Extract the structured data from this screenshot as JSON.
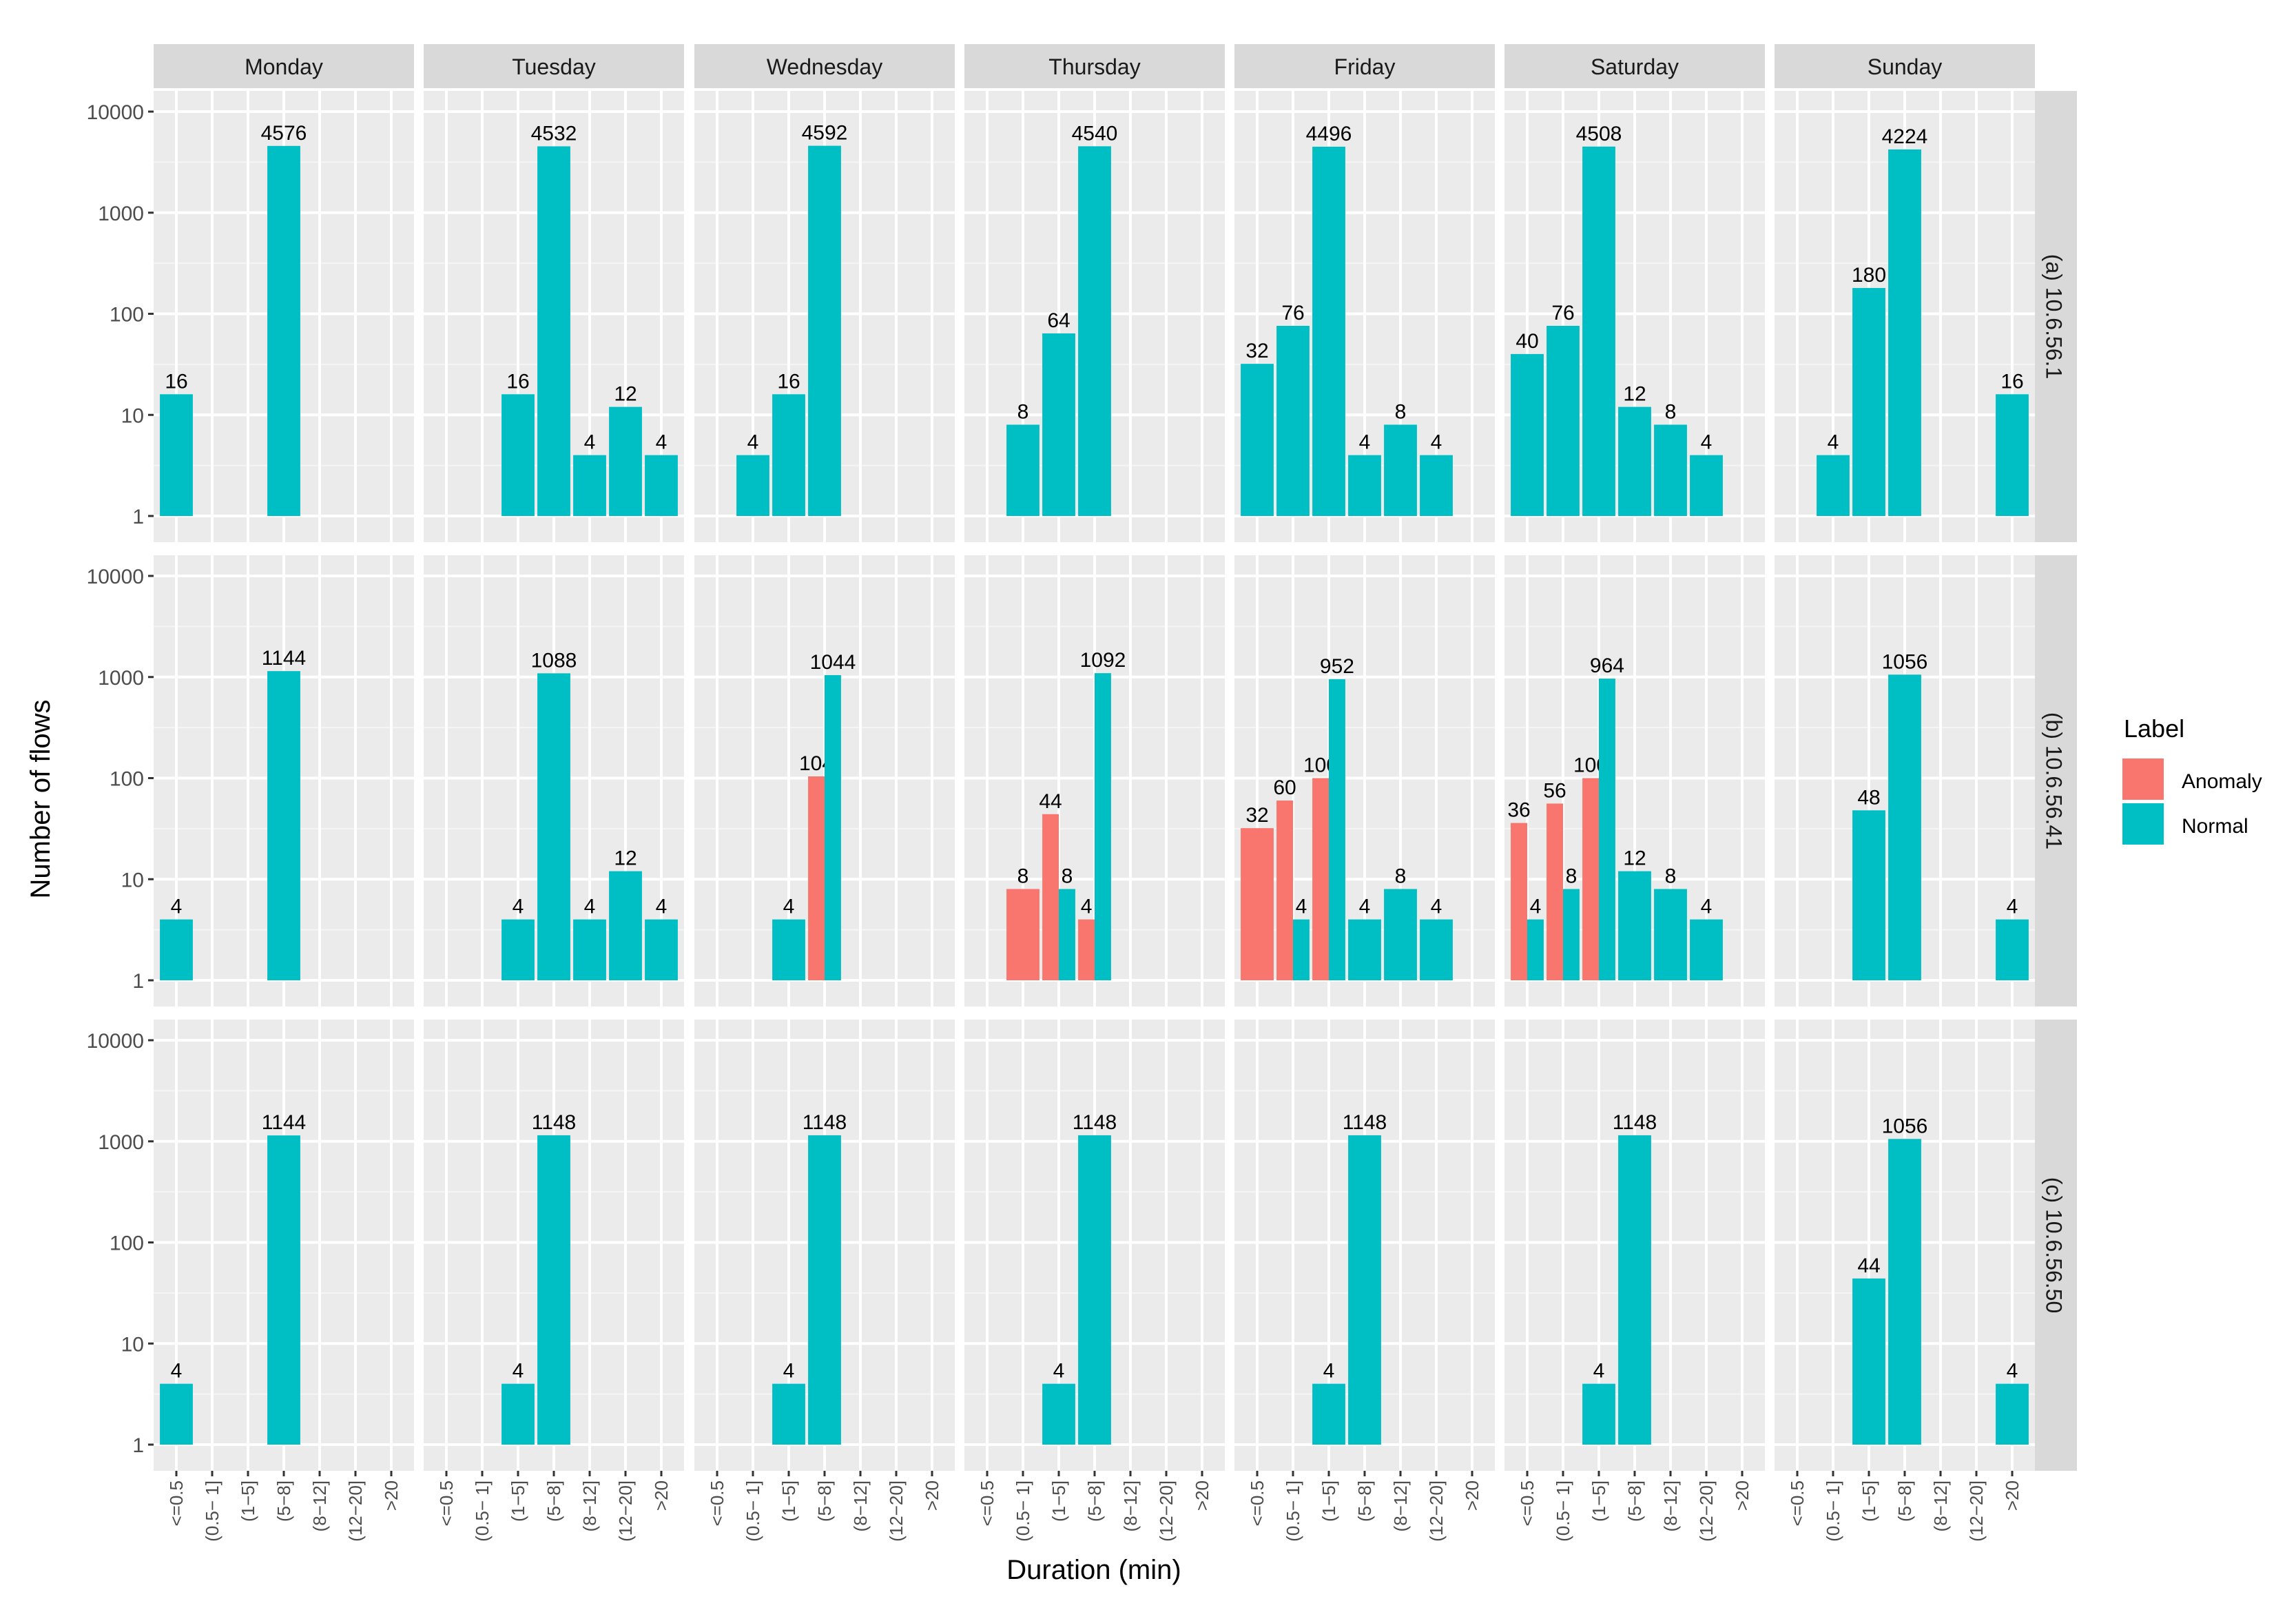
{
  "chart_data": {
    "type": "bar",
    "scale": "log10",
    "xlabel": "Duration (min)",
    "ylabel": "Number of flows",
    "ylim": [
      1,
      10000
    ],
    "y_ticks": [
      1,
      10,
      100,
      1000,
      10000
    ],
    "y_tick_labels": [
      "1",
      "10",
      "100",
      "1000",
      "10000"
    ],
    "categories": [
      "<=0.5",
      "(0.5− 1]",
      "(1−5]",
      "(5−8]",
      "(8−12]",
      "(12−20]",
      ">20"
    ],
    "columns": [
      "Monday",
      "Tuesday",
      "Wednesday",
      "Thursday",
      "Friday",
      "Saturday",
      "Sunday"
    ],
    "rows": [
      "(a) 10.6.56.1",
      "(b) 10.6.56.41",
      "(c) 10.6.56.50"
    ],
    "legend": {
      "title": "Label",
      "position": "right",
      "items": [
        {
          "name": "Anomaly",
          "color": "#F8766D"
        },
        {
          "name": "Normal",
          "color": "#00BFC4"
        }
      ]
    },
    "panels": [
      [
        {
          "bars": [
            [
              0,
              "Normal",
              16
            ],
            [
              3,
              "Normal",
              4576
            ]
          ]
        },
        {
          "bars": [
            [
              2,
              "Normal",
              16
            ],
            [
              3,
              "Normal",
              4532
            ],
            [
              4,
              "Normal",
              4
            ],
            [
              5,
              "Normal",
              12
            ],
            [
              6,
              "Normal",
              4
            ]
          ]
        },
        {
          "bars": [
            [
              1,
              "Normal",
              4
            ],
            [
              2,
              "Normal",
              16
            ],
            [
              3,
              "Normal",
              4592
            ]
          ]
        },
        {
          "bars": [
            [
              1,
              "Normal",
              8
            ],
            [
              2,
              "Normal",
              64
            ],
            [
              3,
              "Normal",
              4540
            ]
          ]
        },
        {
          "bars": [
            [
              0,
              "Normal",
              32
            ],
            [
              1,
              "Normal",
              76
            ],
            [
              2,
              "Normal",
              4496
            ],
            [
              3,
              "Normal",
              4
            ],
            [
              4,
              "Normal",
              8
            ],
            [
              5,
              "Normal",
              4
            ]
          ],
          "note": "bars span <=0.5..(12-20]"
        },
        {
          "bars": [
            [
              0,
              "Normal",
              40
            ],
            [
              1,
              "Normal",
              76
            ],
            [
              2,
              "Normal",
              4508
            ],
            [
              3,
              "Normal",
              12
            ],
            [
              4,
              "Normal",
              8
            ],
            [
              5,
              "Normal",
              4
            ]
          ]
        },
        {
          "bars": [
            [
              1,
              "Normal",
              4
            ],
            [
              2,
              "Normal",
              180
            ],
            [
              3,
              "Normal",
              4224
            ],
            [
              6,
              "Normal",
              16
            ]
          ]
        }
      ],
      [
        {
          "bars": [
            [
              0,
              "Normal",
              4
            ],
            [
              3,
              "Normal",
              1144
            ]
          ]
        },
        {
          "bars": [
            [
              2,
              "Normal",
              4
            ],
            [
              3,
              "Normal",
              1088
            ],
            [
              4,
              "Normal",
              4
            ],
            [
              5,
              "Normal",
              12
            ],
            [
              6,
              "Normal",
              4
            ]
          ]
        },
        {
          "bars": [
            [
              2,
              "Normal",
              4
            ],
            [
              3,
              "Anomaly",
              104
            ],
            [
              3,
              "Normal",
              1044
            ]
          ]
        },
        {
          "bars": [
            [
              1,
              "Anomaly",
              8
            ],
            [
              2,
              "Anomaly",
              44
            ],
            [
              2,
              "Normal",
              8
            ],
            [
              3,
              "Anomaly",
              4
            ],
            [
              3,
              "Normal",
              1092
            ]
          ]
        },
        {
          "bars": [
            [
              0,
              "Anomaly",
              32
            ],
            [
              1,
              "Anomaly",
              60
            ],
            [
              1,
              "Normal",
              4
            ],
            [
              2,
              "Anomaly",
              100
            ],
            [
              2,
              "Normal",
              952
            ],
            [
              3,
              "Normal",
              4
            ],
            [
              4,
              "Normal",
              8
            ],
            [
              5,
              "Normal",
              4
            ]
          ]
        },
        {
          "bars": [
            [
              0,
              "Anomaly",
              36
            ],
            [
              0,
              "Normal",
              4
            ],
            [
              1,
              "Anomaly",
              56
            ],
            [
              1,
              "Normal",
              8
            ],
            [
              2,
              "Anomaly",
              100
            ],
            [
              2,
              "Normal",
              964
            ],
            [
              3,
              "Normal",
              12
            ],
            [
              4,
              "Normal",
              8
            ],
            [
              5,
              "Normal",
              4
            ]
          ]
        },
        {
          "bars": [
            [
              2,
              "Normal",
              48
            ],
            [
              3,
              "Normal",
              1056
            ],
            [
              6,
              "Normal",
              4
            ]
          ]
        }
      ],
      [
        {
          "bars": [
            [
              0,
              "Normal",
              4
            ],
            [
              3,
              "Normal",
              1144
            ]
          ]
        },
        {
          "bars": [
            [
              2,
              "Normal",
              4
            ],
            [
              3,
              "Normal",
              1148
            ]
          ]
        },
        {
          "bars": [
            [
              2,
              "Normal",
              4
            ],
            [
              3,
              "Normal",
              1148
            ]
          ]
        },
        {
          "bars": [
            [
              2,
              "Normal",
              4
            ],
            [
              3,
              "Normal",
              1148
            ]
          ]
        },
        {
          "bars": [
            [
              2,
              "Normal",
              4
            ],
            [
              3,
              "Normal",
              1148
            ]
          ]
        },
        {
          "bars": [
            [
              2,
              "Normal",
              4
            ],
            [
              3,
              "Normal",
              1148
            ]
          ]
        },
        {
          "bars": [
            [
              2,
              "Normal",
              44
            ],
            [
              3,
              "Normal",
              1056
            ],
            [
              6,
              "Normal",
              4
            ]
          ]
        }
      ]
    ]
  }
}
